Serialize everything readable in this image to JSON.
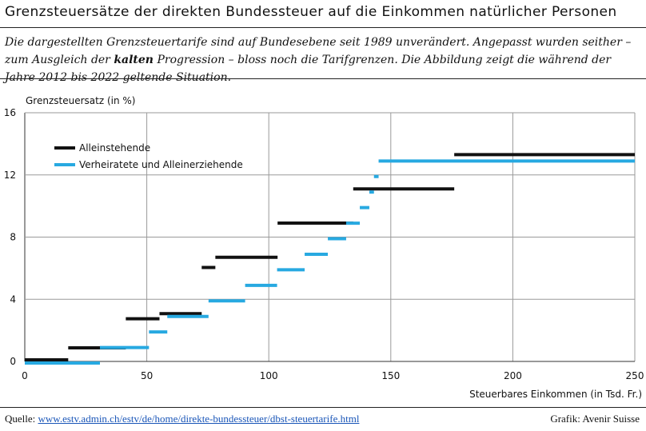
{
  "title": "Grenzsteuersätze der direkten Bundessteuer auf die Einkommen natürlicher Personen",
  "subtitle": {
    "part1": "Die dargestellten Grenzsteuertarife sind auf Bundesebene seit 1989 unverändert. Angepasst wurden seither – zum Ausgleich der ",
    "bold": "kalten",
    "part2": " Progression – bloss noch die Tarifgrenzen. Die Abbildung zeigt die während der Jahre 2012 bis 2022 geltende Situation."
  },
  "footer": {
    "source_label": "Quelle: ",
    "source_link": "www.estv.admin.ch/estv/de/home/direkte-bundessteuer/dbst-steuertarife.html",
    "credit": "Grafik: Avenir Suisse"
  },
  "chart_data": {
    "type": "line",
    "ylabel": "Grenzsteuersatz (in %)",
    "xlabel": "Steuerbares Einkommen (in Tsd. Fr.)",
    "xlim": [
      0,
      250
    ],
    "ylim": [
      0,
      16
    ],
    "xticks": [
      "0",
      "50",
      "100",
      "150",
      "200",
      "250"
    ],
    "yticks": [
      "0",
      "4",
      "8",
      "12",
      "16"
    ],
    "grid": true,
    "legend_position": "top-left",
    "series": [
      {
        "name": "Alleinstehende",
        "color": "#111111",
        "segments": [
          {
            "x": [
              0,
              17.8
            ],
            "y": 0
          },
          {
            "x": [
              17.8,
              41.4
            ],
            "y": 0.77
          },
          {
            "x": [
              41.4,
              55.2
            ],
            "y": 2.64
          },
          {
            "x": [
              55.2,
              72.5
            ],
            "y": 2.97
          },
          {
            "x": [
              72.5,
              78.1
            ],
            "y": 5.94
          },
          {
            "x": [
              78.1,
              103.6
            ],
            "y": 6.6
          },
          {
            "x": [
              103.6,
              134.6
            ],
            "y": 8.8
          },
          {
            "x": [
              134.6,
              176.0
            ],
            "y": 11.0
          },
          {
            "x": [
              176.0,
              250
            ],
            "y": 13.2
          }
        ]
      },
      {
        "name": "Verheiratete und Alleinerziehende",
        "color": "#27a9e1",
        "segments": [
          {
            "x": [
              0,
              30.8
            ],
            "y": 0
          },
          {
            "x": [
              30.8,
              50.9
            ],
            "y": 1.0
          },
          {
            "x": [
              50.9,
              58.4
            ],
            "y": 2.0
          },
          {
            "x": [
              58.4,
              75.3
            ],
            "y": 3.0
          },
          {
            "x": [
              75.3,
              90.3
            ],
            "y": 4.0
          },
          {
            "x": [
              90.3,
              103.4
            ],
            "y": 5.0
          },
          {
            "x": [
              103.4,
              114.7
            ],
            "y": 6.0
          },
          {
            "x": [
              114.7,
              124.2
            ],
            "y": 7.0
          },
          {
            "x": [
              124.2,
              131.7
            ],
            "y": 8.0
          },
          {
            "x": [
              131.7,
              137.3
            ],
            "y": 9.0
          },
          {
            "x": [
              137.3,
              141.2
            ],
            "y": 10.0
          },
          {
            "x": [
              141.2,
              143.1
            ],
            "y": 11.0
          },
          {
            "x": [
              143.1,
              145.0
            ],
            "y": 12.0
          },
          {
            "x": [
              145.0,
              250
            ],
            "y": 13.0
          }
        ]
      }
    ]
  }
}
